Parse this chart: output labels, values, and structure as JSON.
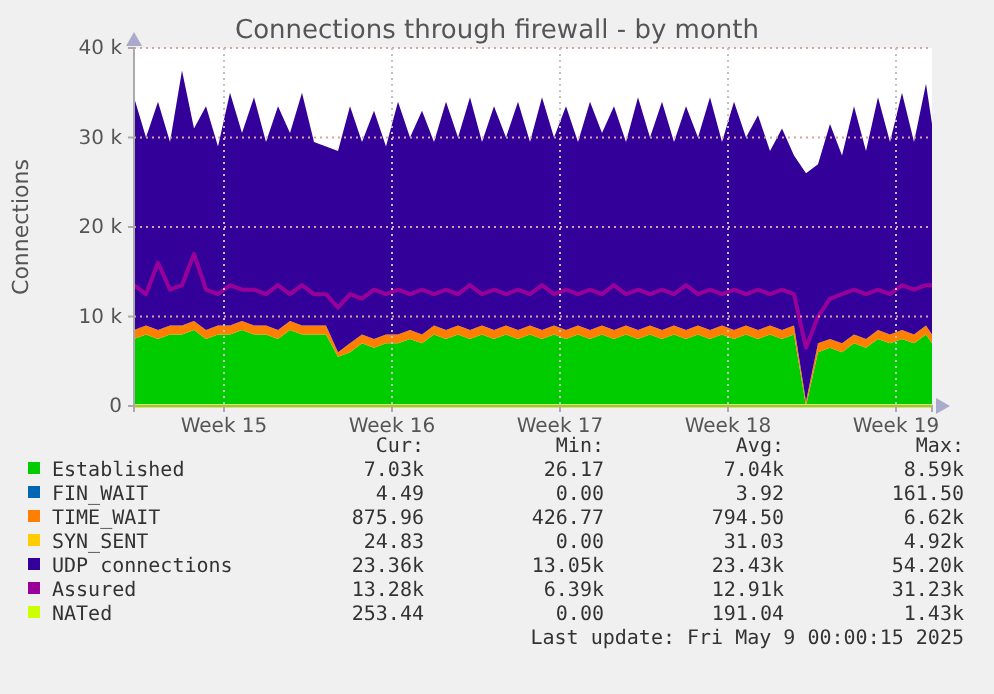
{
  "chart_data": {
    "type": "area",
    "stacked": true,
    "title": "Connections through firewall - by month",
    "ylabel": "Connections",
    "xlim": [
      "2025-04-05T18:00",
      "2025-05-09T00:00"
    ],
    "ylim": [
      0,
      40000
    ],
    "xticks": [
      {
        "value": "2025-04-09T12:00",
        "label": "Week 15"
      },
      {
        "value": "2025-04-16T12:00",
        "label": "Week 16"
      },
      {
        "value": "2025-04-23T12:00",
        "label": "Week 17"
      },
      {
        "value": "2025-04-30T12:00",
        "label": "Week 18"
      },
      {
        "value": "2025-05-07T12:00",
        "label": "Week 19"
      }
    ],
    "yticks": [
      0,
      {
        "value": 10000,
        "label": "10 k"
      },
      {
        "value": 20000,
        "label": "20 k"
      },
      {
        "value": 30000,
        "label": "30 k"
      },
      {
        "value": 40000,
        "label": "40 k"
      }
    ],
    "grid": true,
    "legend": "bottom",
    "x": [
      "2025-04-05T18:00",
      "2025-04-06T06:00",
      "2025-04-06T18:00",
      "2025-04-07T06:00",
      "2025-04-07T18:00",
      "2025-04-08T06:00",
      "2025-04-08T18:00",
      "2025-04-09T06:00",
      "2025-04-09T18:00",
      "2025-04-10T06:00",
      "2025-04-10T18:00",
      "2025-04-11T06:00",
      "2025-04-11T18:00",
      "2025-04-12T06:00",
      "2025-04-12T18:00",
      "2025-04-13T06:00",
      "2025-04-13T18:00",
      "2025-04-14T06:00",
      "2025-04-14T18:00",
      "2025-04-15T06:00",
      "2025-04-15T18:00",
      "2025-04-16T06:00",
      "2025-04-16T18:00",
      "2025-04-17T06:00",
      "2025-04-17T18:00",
      "2025-04-18T06:00",
      "2025-04-18T18:00",
      "2025-04-19T06:00",
      "2025-04-19T18:00",
      "2025-04-20T06:00",
      "2025-04-20T18:00",
      "2025-04-21T06:00",
      "2025-04-21T18:00",
      "2025-04-22T06:00",
      "2025-04-22T18:00",
      "2025-04-23T06:00",
      "2025-04-23T18:00",
      "2025-04-24T06:00",
      "2025-04-24T18:00",
      "2025-04-25T06:00",
      "2025-04-25T18:00",
      "2025-04-26T06:00",
      "2025-04-26T18:00",
      "2025-04-27T06:00",
      "2025-04-27T18:00",
      "2025-04-28T06:00",
      "2025-04-28T18:00",
      "2025-04-29T06:00",
      "2025-04-29T18:00",
      "2025-04-30T06:00",
      "2025-04-30T18:00",
      "2025-05-01T06:00",
      "2025-05-01T18:00",
      "2025-05-02T06:00",
      "2025-05-02T18:00",
      "2025-05-03T06:00",
      "2025-05-03T18:00",
      "2025-05-04T06:00",
      "2025-05-04T18:00",
      "2025-05-05T06:00",
      "2025-05-05T18:00",
      "2025-05-06T06:00",
      "2025-05-06T18:00",
      "2025-05-07T06:00",
      "2025-05-07T18:00",
      "2025-05-08T06:00",
      "2025-05-08T18:00",
      "2025-05-09T00:00"
    ],
    "series": [
      {
        "name": "Established",
        "color": "#00cc00",
        "values": [
          7500,
          8000,
          7500,
          8000,
          8000,
          8500,
          7500,
          8000,
          8000,
          8500,
          8000,
          8000,
          7500,
          8500,
          8000,
          8000,
          8000,
          5500,
          6000,
          7000,
          6500,
          7000,
          7000,
          7500,
          7000,
          8000,
          7500,
          8000,
          7500,
          8000,
          7500,
          8000,
          7500,
          8000,
          7500,
          8000,
          7500,
          8000,
          7500,
          8000,
          7500,
          8000,
          7500,
          8000,
          7500,
          8000,
          7500,
          8000,
          7500,
          8000,
          7500,
          8000,
          7500,
          8000,
          7500,
          8000,
          0,
          6000,
          6500,
          6000,
          7000,
          6500,
          7500,
          7000,
          7500,
          7000,
          8000,
          7000
        ]
      },
      {
        "name": "FIN_WAIT",
        "color": "#0066b3",
        "values": [
          null,
          null,
          null,
          null,
          null,
          null,
          null,
          null,
          null,
          null,
          null,
          null,
          null,
          null,
          null,
          null,
          null,
          null,
          null,
          null,
          null,
          null,
          null,
          null,
          null,
          null,
          null,
          null,
          null,
          null,
          null,
          null,
          null,
          null,
          null,
          null,
          null,
          null,
          null,
          null,
          null,
          null,
          null,
          null,
          null,
          null,
          null,
          null,
          null,
          null,
          null,
          null,
          null,
          null,
          null,
          null,
          null,
          null,
          null,
          null,
          null,
          null,
          null,
          null,
          null,
          null,
          null,
          null
        ]
      },
      {
        "name": "TIME_WAIT",
        "color": "#ff8000",
        "values": [
          1000,
          1000,
          1000,
          1000,
          1000,
          1000,
          1000,
          1000,
          1000,
          1000,
          1000,
          1000,
          1000,
          1000,
          1000,
          1000,
          1000,
          500,
          1000,
          1000,
          1000,
          1000,
          1000,
          1000,
          1000,
          1000,
          1000,
          1000,
          1000,
          1000,
          1000,
          1000,
          1000,
          1000,
          1000,
          1000,
          1000,
          1000,
          1000,
          1000,
          1000,
          1000,
          1000,
          1000,
          1000,
          1000,
          1000,
          1000,
          1000,
          1000,
          1000,
          1000,
          1000,
          1000,
          1000,
          1000,
          500,
          1000,
          1000,
          1000,
          1000,
          1000,
          1000,
          1000,
          1000,
          1000,
          1000,
          1000
        ]
      },
      {
        "name": "SYN_SENT",
        "color": "#ffcc00",
        "values": [
          null,
          null,
          null,
          null,
          null,
          null,
          null,
          null,
          null,
          null,
          null,
          null,
          null,
          null,
          null,
          null,
          null,
          null,
          null,
          null,
          null,
          null,
          null,
          null,
          null,
          null,
          null,
          null,
          null,
          null,
          null,
          null,
          null,
          null,
          null,
          null,
          null,
          null,
          null,
          null,
          null,
          null,
          null,
          null,
          null,
          null,
          null,
          null,
          null,
          null,
          null,
          null,
          null,
          null,
          null,
          null,
          null,
          null,
          null,
          null,
          null,
          null,
          null,
          null,
          null,
          null,
          null,
          null
        ]
      },
      {
        "name": "UDP connections",
        "color": "#330099",
        "values": [
          26000,
          21000,
          25500,
          20500,
          28500,
          21500,
          25000,
          20000,
          26000,
          21000,
          25500,
          20500,
          25000,
          21000,
          26000,
          20500,
          20000,
          22500,
          26500,
          21500,
          25500,
          21000,
          26000,
          21500,
          25000,
          20500,
          25500,
          21000,
          26000,
          20500,
          25000,
          21000,
          25500,
          20500,
          26000,
          21000,
          25000,
          20500,
          25500,
          21500,
          25000,
          20500,
          26000,
          21000,
          25500,
          20500,
          25000,
          21000,
          26000,
          20500,
          25500,
          21000,
          24000,
          19500,
          22500,
          19000,
          25500,
          20000,
          24000,
          21000,
          25500,
          21000,
          26000,
          21500,
          26500,
          21500,
          27000,
          23500
        ]
      },
      {
        "name": "Assured",
        "type": "line",
        "color": "#990099",
        "values": [
          13500,
          12500,
          16000,
          13000,
          13500,
          17000,
          13000,
          12500,
          13500,
          13000,
          13000,
          12500,
          13500,
          12500,
          13500,
          12500,
          12500,
          11000,
          12500,
          12000,
          13000,
          12500,
          13000,
          12500,
          13000,
          12500,
          13000,
          12500,
          13500,
          12500,
          13000,
          12500,
          13000,
          12500,
          13500,
          12500,
          13000,
          12500,
          13000,
          12500,
          13500,
          12500,
          13000,
          12500,
          13000,
          12500,
          13500,
          12500,
          13000,
          12500,
          13000,
          12500,
          13000,
          12500,
          13000,
          12500,
          6500,
          10000,
          12000,
          12500,
          13000,
          12500,
          13000,
          12500,
          13500,
          13000,
          13500,
          13500
        ]
      },
      {
        "name": "NATed",
        "type": "line",
        "color": "#ccff00",
        "values": [
          0,
          0,
          0,
          0,
          0,
          0,
          0,
          0,
          0,
          0,
          0,
          0,
          0,
          0,
          0,
          0,
          0,
          0,
          0,
          0,
          0,
          0,
          0,
          0,
          0,
          0,
          0,
          0,
          0,
          0,
          0,
          0,
          0,
          0,
          0,
          0,
          0,
          0,
          0,
          0,
          0,
          0,
          0,
          0,
          0,
          0,
          0,
          0,
          0,
          0,
          0,
          0,
          0,
          0,
          0,
          0,
          0,
          0,
          0,
          0,
          0,
          0,
          0,
          0,
          0,
          0,
          0,
          0
        ]
      }
    ],
    "annotations": [
      "Cur:",
      "Min:",
      "Avg:",
      "Max:",
      "7.03k",
      "26.17",
      "7.04k",
      "8.59k",
      "4.49",
      "0.00",
      "3.92",
      "161.50",
      "875.96",
      "426.77",
      "794.50",
      "6.62k",
      "24.83",
      "0.00",
      "31.03",
      "4.92k",
      "23.36k",
      "13.05k",
      "23.43k",
      "54.20k",
      "13.28k",
      "6.39k",
      "12.91k",
      "31.23k",
      "253.44",
      "0.00",
      "191.04",
      "1.43k",
      "Last update: Fri May  9 00:00:15 2025"
    ]
  }
}
